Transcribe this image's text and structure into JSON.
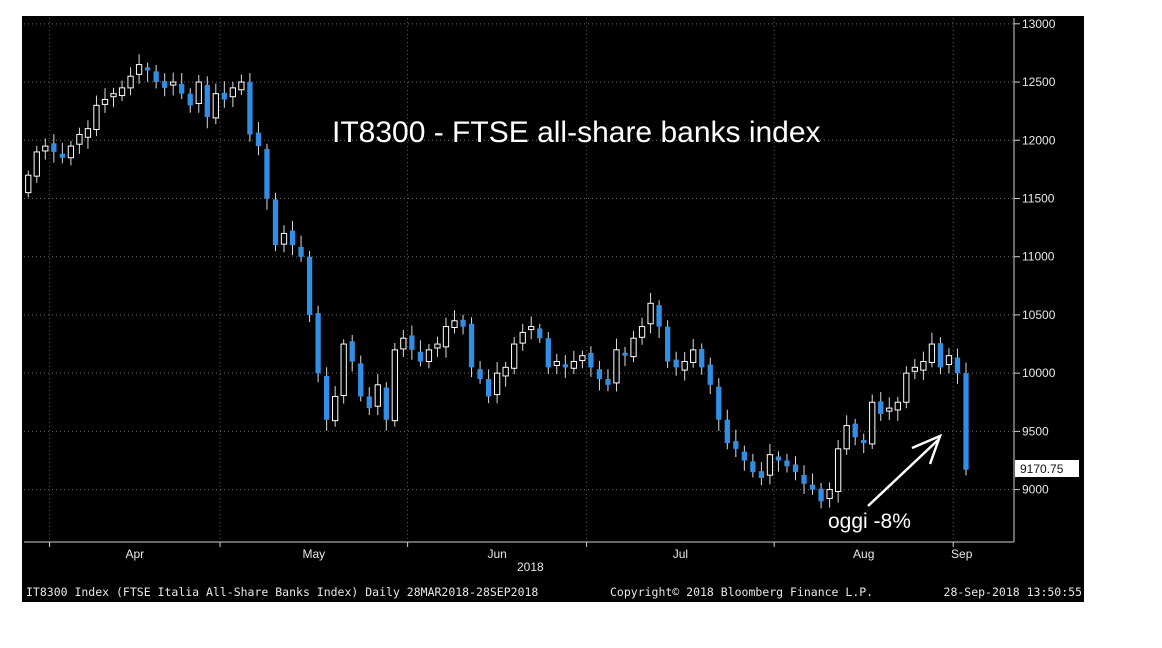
{
  "chart_data": {
    "type": "candlestick",
    "title": "IT8300 - FTSE all-share banks index",
    "year_label": "2018",
    "y_ticks": [
      9000,
      9500,
      10000,
      10500,
      11000,
      11500,
      12000,
      12500,
      13000
    ],
    "ylim": [
      8550,
      13050
    ],
    "x_months": [
      "Apr",
      "May",
      "Jun",
      "Jul",
      "Aug",
      "Sep"
    ],
    "last_value": "9170.75",
    "annotation": "oggi -8%",
    "grid": true,
    "up_color": "#ffffff",
    "down_color": "#2f8fe6",
    "close_series": [
      11700,
      11900,
      11950,
      11900,
      11850,
      11950,
      12050,
      12100,
      12300,
      12350,
      12400,
      12450,
      12550,
      12650,
      12600,
      12500,
      12450,
      12500,
      12400,
      12300,
      12500,
      12200,
      12400,
      12350,
      12450,
      12500,
      12050,
      11950,
      11500,
      11100,
      11200,
      11100,
      11000,
      10500,
      10000,
      9600,
      9800,
      10250,
      10100,
      9800,
      9700,
      9900,
      9600,
      10200,
      10300,
      10200,
      10100,
      10200,
      10250,
      10400,
      10450,
      10400,
      10050,
      9950,
      9800,
      10000,
      10050,
      10250,
      10350,
      10400,
      10300,
      10050,
      10100,
      10050,
      10100,
      10150,
      10050,
      9950,
      9900,
      10200,
      10150,
      10300,
      10400,
      10600,
      10400,
      10100,
      10050,
      10100,
      10200,
      10050,
      9900,
      9600,
      9400,
      9350,
      9250,
      9150,
      9100,
      9300,
      9250,
      9200,
      9150,
      9050,
      9000,
      8900,
      9000,
      9350,
      9550,
      9450,
      9400,
      9750,
      9650,
      9700,
      9750,
      10000,
      10050,
      10100,
      10250,
      10050,
      10150,
      10000,
      9170.75
    ],
    "months_start_index": [
      3,
      23,
      45,
      66,
      88,
      109
    ]
  },
  "footer": {
    "left": "IT8300 Index (FTSE Italia All-Share Banks Index)  Daily 28MAR2018-28SEP2018",
    "middle": "Copyright© 2018 Bloomberg Finance L.P.",
    "right": "28-Sep-2018 13:50:55"
  }
}
